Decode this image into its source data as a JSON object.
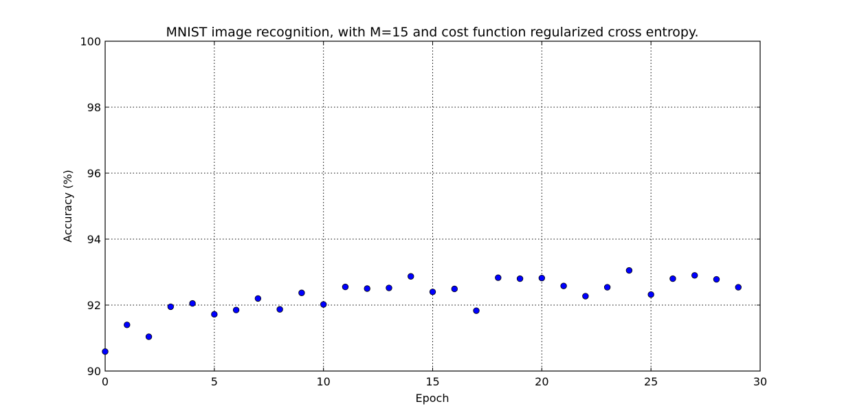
{
  "chart_data": {
    "type": "scatter",
    "title": "MNIST image recognition, with M=15 and cost function regularized cross entropy.",
    "xlabel": "Epoch",
    "ylabel": "Accuracy (%)",
    "xlim": [
      0,
      30
    ],
    "ylim": [
      90,
      100
    ],
    "xticks": [
      "0",
      "5",
      "10",
      "15",
      "20",
      "25",
      "30"
    ],
    "yticks": [
      "90",
      "92",
      "94",
      "96",
      "98",
      "100"
    ],
    "grid": true,
    "marker_color": "#0000ff",
    "series": [
      {
        "x": [
          0,
          1,
          2,
          3,
          4,
          5,
          6,
          7,
          8,
          9,
          10,
          11,
          12,
          13,
          14,
          15,
          16,
          17,
          18,
          19,
          20,
          21,
          22,
          23,
          24,
          25,
          26,
          27,
          28,
          29
        ],
        "y": [
          90.59,
          91.4,
          91.04,
          91.95,
          92.05,
          91.72,
          91.85,
          92.2,
          91.87,
          92.37,
          92.02,
          92.55,
          92.5,
          92.52,
          92.87,
          92.4,
          92.49,
          91.83,
          92.83,
          92.8,
          92.82,
          92.58,
          92.27,
          92.54,
          93.05,
          92.32,
          92.8,
          92.9,
          92.78,
          92.54
        ]
      }
    ]
  }
}
